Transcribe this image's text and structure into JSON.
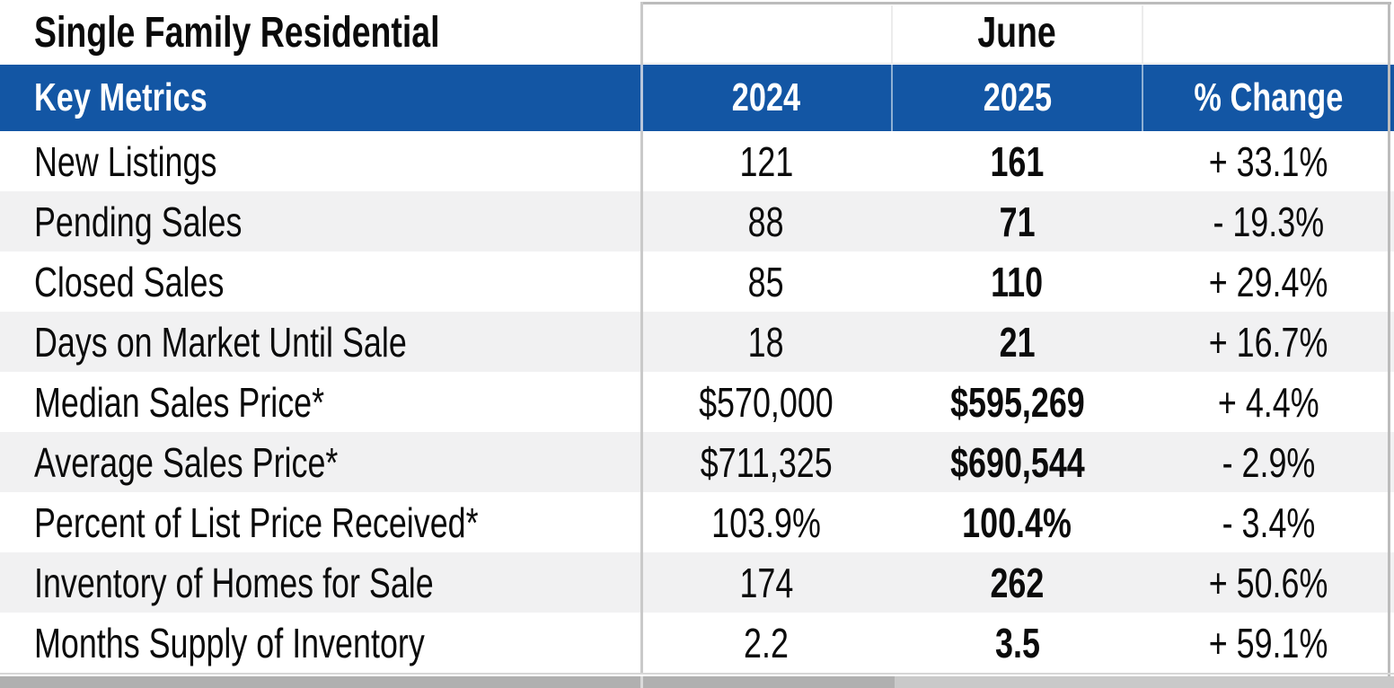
{
  "chart_data": {
    "type": "table",
    "title": "Single Family Residential",
    "period_header": "June",
    "columns": [
      "Key Metrics",
      "2024",
      "2025",
      "% Change"
    ],
    "rows": [
      {
        "metric": "New Listings",
        "y2024": "121",
        "y2025": "161",
        "pct_change": "+ 33.1%"
      },
      {
        "metric": "Pending Sales",
        "y2024": "88",
        "y2025": "71",
        "pct_change": "- 19.3%"
      },
      {
        "metric": "Closed Sales",
        "y2024": "85",
        "y2025": "110",
        "pct_change": "+ 29.4%"
      },
      {
        "metric": "Days on Market Until Sale",
        "y2024": "18",
        "y2025": "21",
        "pct_change": "+ 16.7%"
      },
      {
        "metric": "Median Sales Price*",
        "y2024": "$570,000",
        "y2025": "$595,269",
        "pct_change": "+ 4.4%"
      },
      {
        "metric": "Average Sales Price*",
        "y2024": "$711,325",
        "y2025": "$690,544",
        "pct_change": "- 2.9%"
      },
      {
        "metric": "Percent of List Price Received*",
        "y2024": "103.9%",
        "y2025": "100.4%",
        "pct_change": "- 3.4%"
      },
      {
        "metric": "Inventory of Homes for Sale",
        "y2024": "174",
        "y2025": "262",
        "pct_change": "+ 50.6%"
      },
      {
        "metric": "Months Supply of Inventory",
        "y2024": "2.2",
        "y2025": "3.5",
        "pct_change": "+ 59.1%"
      }
    ],
    "layout": {
      "striped_rows": true,
      "bold_column": "2025",
      "grouped_columns_under": "June"
    }
  },
  "colors": {
    "header_blue": "#1356A4",
    "row_alt_gray": "#F1F1F2",
    "border_gray": "#BCBCBC",
    "bottom_bar_gray": "#B0B0B0",
    "bottom_bar_light": "#C9C9C9",
    "header_separator_blue": "#8FB0D4",
    "text_black": "#0B0B0B",
    "header_text_white": "#FFFFFF"
  }
}
